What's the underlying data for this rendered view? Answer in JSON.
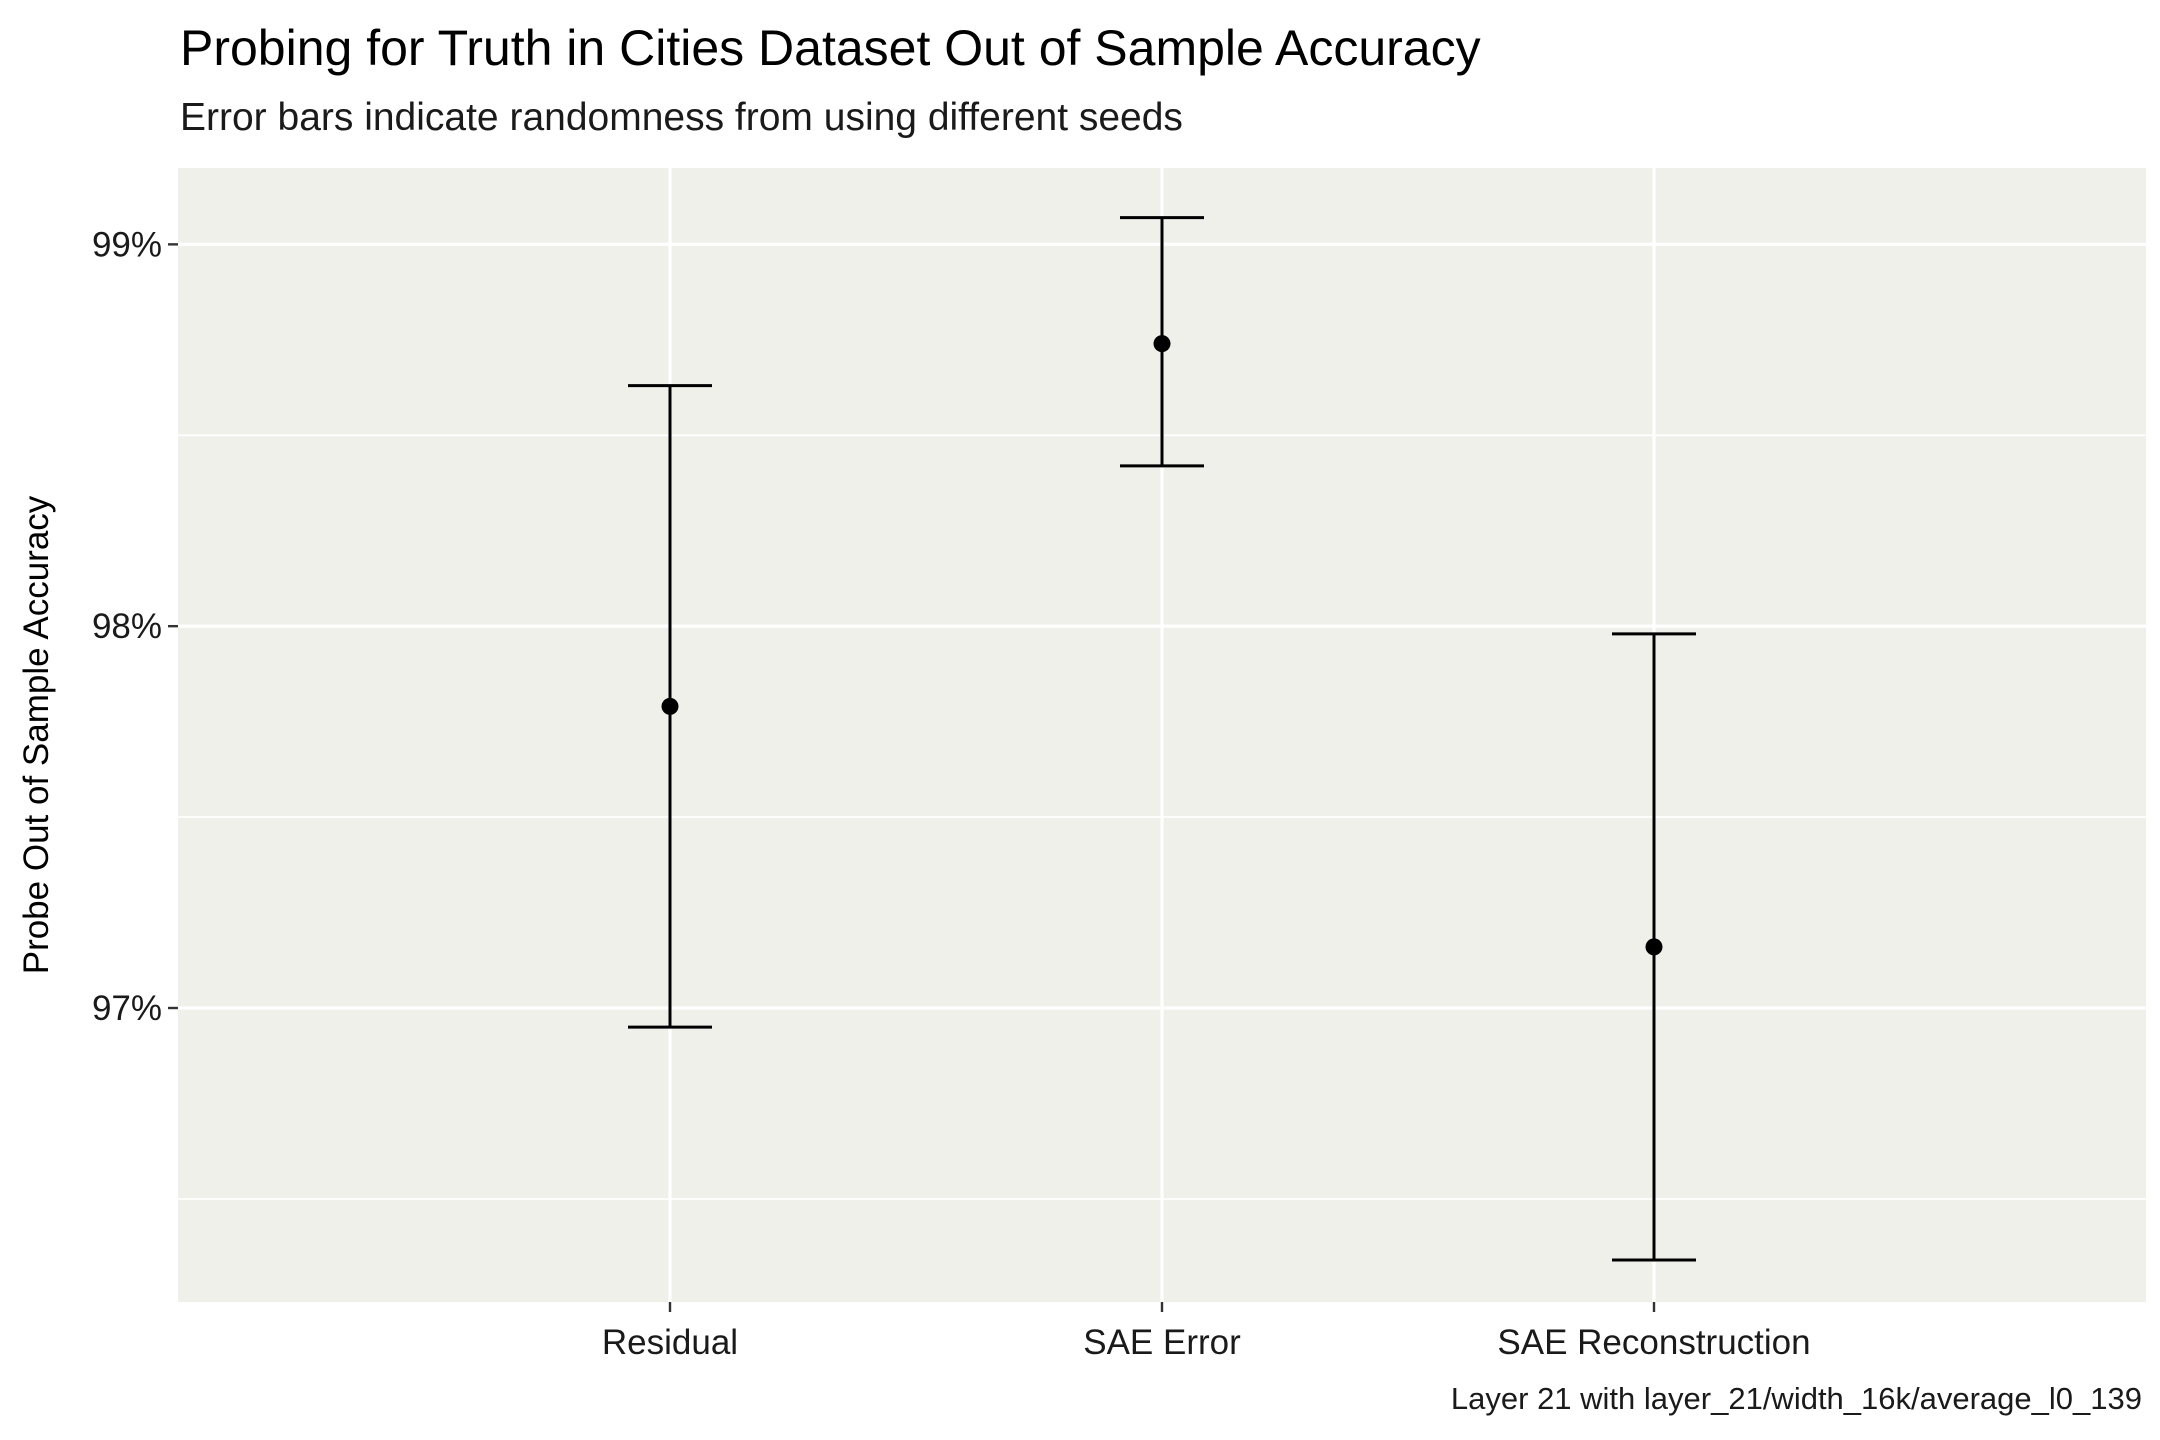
{
  "chart_data": {
    "type": "errorbar",
    "title": "Probing for Truth in Cities Dataset Out of Sample Accuracy",
    "subtitle": "Error bars indicate randomness from using different seeds",
    "caption": "Layer 21 with layer_21/width_16k/average_l0_139",
    "xlabel": "",
    "ylabel": "Probe Out of Sample Accuracy",
    "categories": [
      "Residual",
      "SAE Error",
      "SAE Reconstruction"
    ],
    "values": [
      97.79,
      98.74,
      97.16
    ],
    "error_low": [
      96.95,
      98.42,
      96.34
    ],
    "error_high": [
      98.63,
      99.07,
      97.98
    ],
    "y_unit": "%",
    "ylim": [
      96.23,
      99.2
    ],
    "y_ticks": [
      97,
      98,
      99
    ],
    "y_tick_labels": [
      "97%",
      "98%",
      "99%"
    ],
    "grid": true,
    "panel_color": "#f0f0eb",
    "grid_color": "#ffffff",
    "mark_color": "#000000"
  }
}
